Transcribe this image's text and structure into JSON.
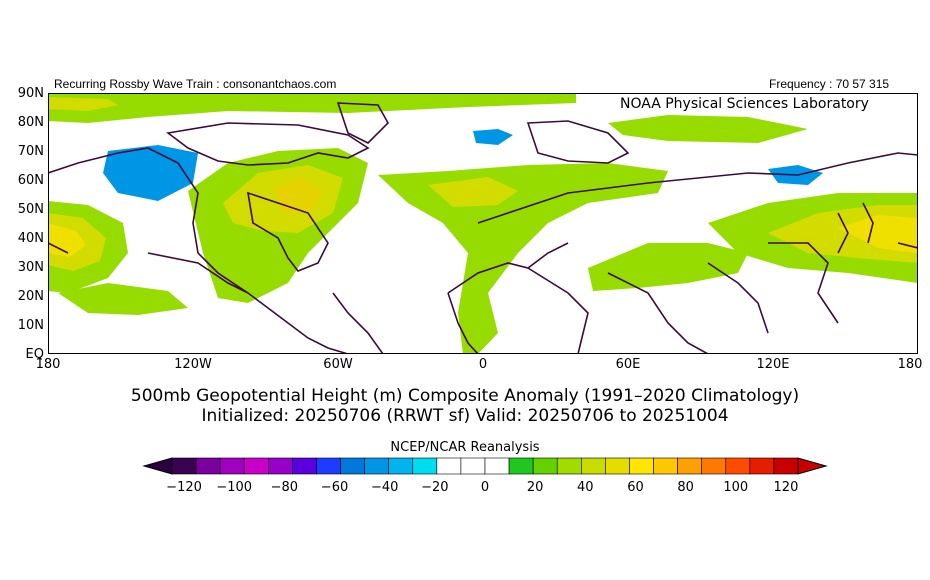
{
  "header": {
    "left": "Recurring Rossby Wave Train : consonantchaos.com",
    "right": "Frequency : 70 57 315"
  },
  "credit": "NOAA Physical Sciences Laboratory",
  "latitude_labels": [
    "90N",
    "80N",
    "70N",
    "60N",
    "50N",
    "40N",
    "30N",
    "20N",
    "10N",
    "EQ"
  ],
  "longitude_labels": [
    "180",
    "120W",
    "60W",
    "0",
    "60E",
    "120E",
    "180"
  ],
  "title_line1": "500mb Geopotential Height (m) Composite Anomaly (1991–2020 Climatology)",
  "title_line2": "Initialized: 20250706 (RRWT sf) Valid: 20250706 to 20251004",
  "reanalysis": "NCEP/NCAR Reanalysis",
  "colorbar": {
    "labels": [
      "−120",
      "−100",
      "−80",
      "−60",
      "−40",
      "−20",
      "0",
      "20",
      "40",
      "60",
      "80",
      "100",
      "120"
    ],
    "colors": [
      "#3c0050",
      "#7a00a0",
      "#a000c0",
      "#c800c8",
      "#9600c8",
      "#5a00dc",
      "#1e3cff",
      "#0078dc",
      "#0096e6",
      "#00b4f0",
      "#00dcf0",
      "#ffffff",
      "#ffffff",
      "#ffffff",
      "#1ec81e",
      "#64d200",
      "#a0dc00",
      "#c8dc00",
      "#e6dc00",
      "#ffe600",
      "#ffc800",
      "#ffa000",
      "#ff7800",
      "#ff4b00",
      "#e61e00",
      "#c80000"
    ]
  }
}
